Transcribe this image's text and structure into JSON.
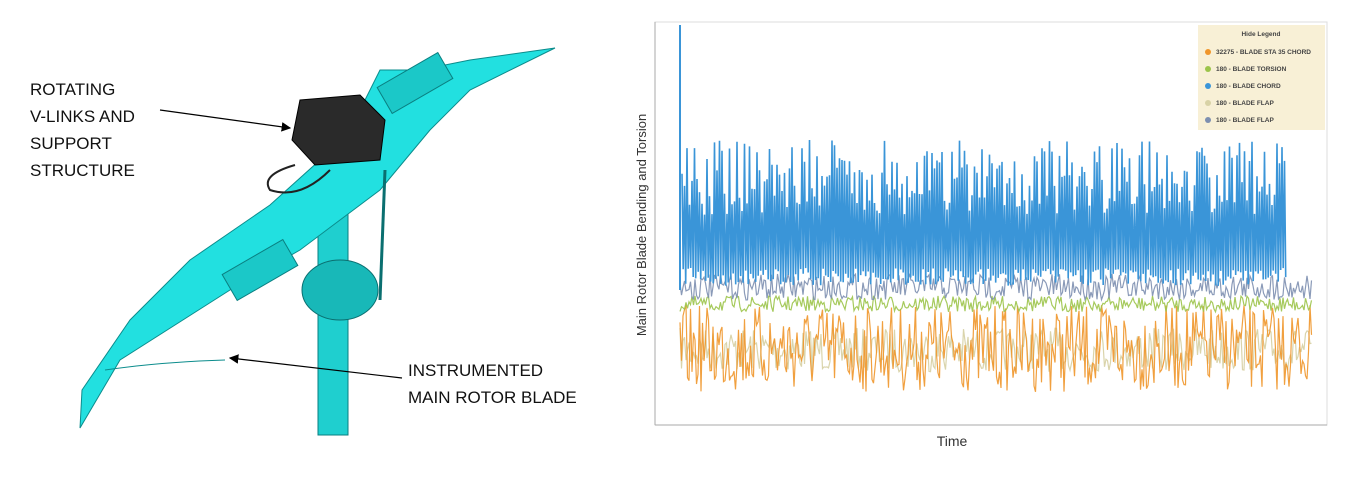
{
  "left_figure": {
    "callouts": [
      {
        "lines": [
          "ROTATING",
          "V-LINKS AND",
          "SUPPORT",
          "STRUCTURE"
        ]
      },
      {
        "lines": [
          "INSTRUMENTED",
          "MAIN ROTOR BLADE"
        ]
      }
    ]
  },
  "right_chart": {
    "y_label": "Main Rotor Blade Bending and Torsion",
    "x_label": "Time",
    "legend": {
      "title": "Hide Legend",
      "entries": [
        {
          "name": "32275 - BLADE STA 35 CHORD",
          "color": "#f0962a"
        },
        {
          "name": "180 - BLADE TORSION",
          "color": "#9cc44a"
        },
        {
          "name": "180 - BLADE CHORD",
          "color": "#3a95d8"
        },
        {
          "name": "180 - BLADE FLAP",
          "color": "#d8d2a6"
        },
        {
          "name": "180 - BLADE FLAP",
          "color": "#7d8fb0"
        }
      ]
    }
  }
}
